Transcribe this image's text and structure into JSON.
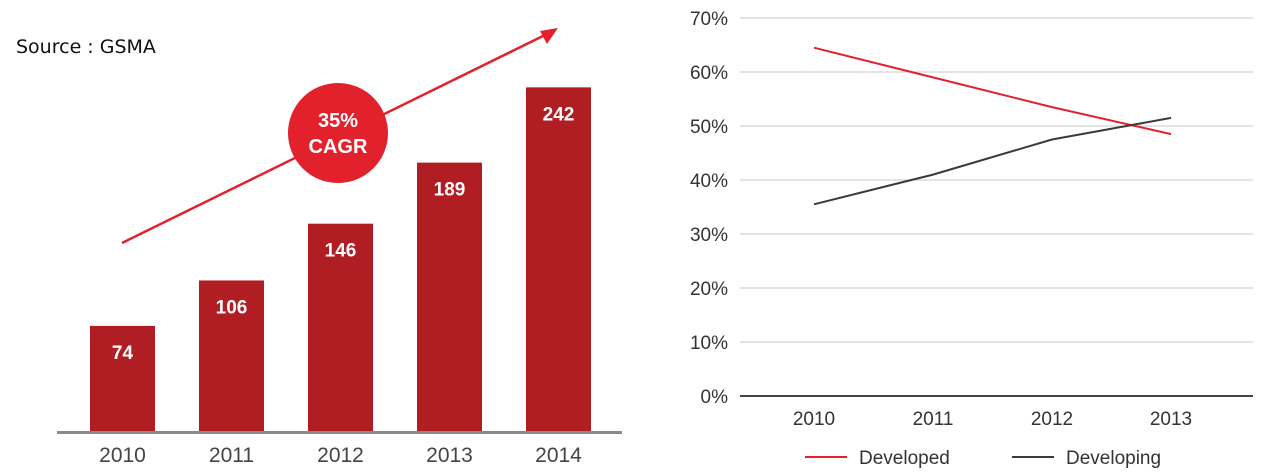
{
  "source_label": "Source : GSMA",
  "colors": {
    "bar": "#b01e23",
    "bar_label": "#ffffff",
    "accent_red": "#e3212d",
    "dark_line": "#3a3a3a",
    "axis": "#444444",
    "grid": "#c8c8c8",
    "tick_text": "#333333"
  },
  "chart_data": [
    {
      "type": "bar",
      "categories": [
        "2010",
        "2011",
        "2012",
        "2013",
        "2014"
      ],
      "values": [
        74,
        106,
        146,
        189,
        242
      ],
      "data_labels": [
        "74",
        "106",
        "146",
        "189",
        "242"
      ],
      "annotation": {
        "line1": "35%",
        "line2": "CAGR"
      },
      "title": "",
      "xlabel": "",
      "ylabel": ""
    },
    {
      "type": "line",
      "x": [
        "2010",
        "2011",
        "2012",
        "2013"
      ],
      "ylim": [
        0,
        70
      ],
      "y_ticks": [
        0,
        10,
        20,
        30,
        40,
        50,
        60,
        70
      ],
      "y_tick_labels": [
        "0%",
        "10%",
        "20%",
        "30%",
        "40%",
        "50%",
        "60%",
        "70%"
      ],
      "grid": true,
      "legend_position": "bottom",
      "series": [
        {
          "name": "Developed",
          "values": [
            64.5,
            59,
            53.5,
            48.5
          ],
          "color": "#e3212d"
        },
        {
          "name": "Developing",
          "values": [
            35.5,
            41,
            47.5,
            51.5
          ],
          "color": "#3a3a3a"
        }
      ],
      "title": "",
      "xlabel": "",
      "ylabel": ""
    }
  ]
}
